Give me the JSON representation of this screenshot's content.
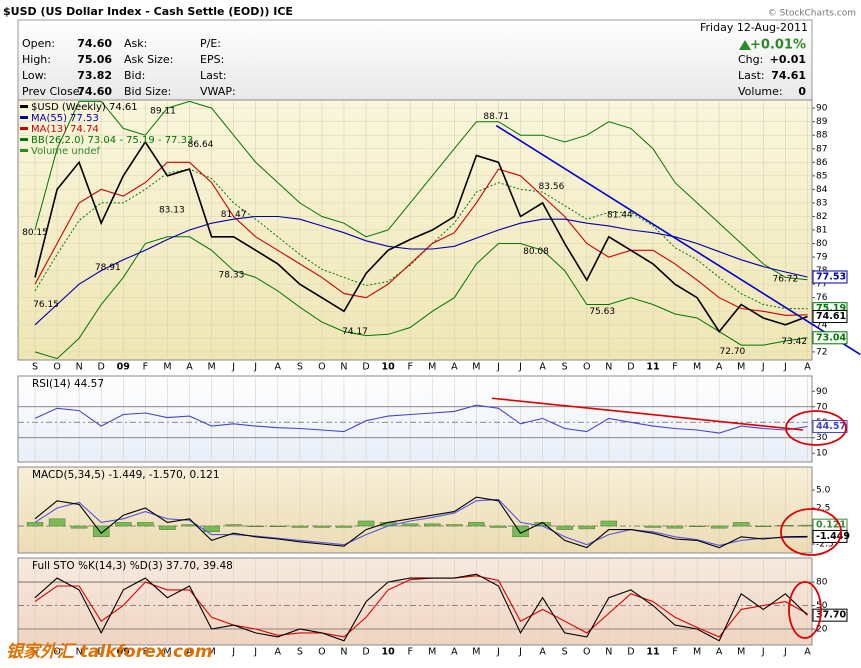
{
  "header": {
    "title": "$USD (US Dollar Index - Cash Settle (EOD)) ICE",
    "credit": "© StockCharts.com",
    "date": "Friday 12-Aug-2011",
    "change_pct": "+0.01%",
    "fields": [
      [
        "Open:",
        "74.60"
      ],
      [
        "High:",
        "75.06"
      ],
      [
        "Low:",
        "73.82"
      ],
      [
        "Prev Close:",
        "74.60"
      ]
    ],
    "col2": [
      "Ask:",
      "Ask Size:",
      "Bid:",
      "Bid Size:"
    ],
    "col3": [
      "P/E:",
      "EPS:",
      "Last:",
      "VWAP:"
    ],
    "right": [
      [
        "Chg:",
        "+0.01"
      ],
      [
        "Last:",
        "74.61"
      ],
      [
        "Volume:",
        "0"
      ]
    ]
  },
  "watermark": "银家外汇 talkforex.com",
  "chart_data": [
    {
      "type": "line",
      "categories": [
        "S",
        "O",
        "N",
        "D",
        "09",
        "F",
        "M",
        "A",
        "M",
        "J",
        "J",
        "A",
        "S",
        "O",
        "N",
        "D",
        "10",
        "F",
        "M",
        "A",
        "M",
        "J",
        "J",
        "A",
        "S",
        "O",
        "N",
        "D",
        "11",
        "F",
        "M",
        "A",
        "M",
        "J",
        "J",
        "A"
      ],
      "ylim": [
        71.4,
        90.6
      ],
      "yticks": [
        72,
        73,
        74,
        75,
        76,
        77,
        78,
        79,
        80,
        81,
        82,
        83,
        84,
        85,
        86,
        87,
        88,
        89,
        90
      ],
      "grid": true,
      "series": [
        {
          "name": "$USD (Weekly) 74.61",
          "color": "#000000",
          "values": [
            77.5,
            84,
            86,
            81.5,
            85,
            87.5,
            85,
            85.5,
            80.5,
            80.5,
            79.5,
            78.5,
            77,
            76,
            75,
            77.8,
            79.5,
            80.3,
            81,
            82,
            86.5,
            86,
            82,
            83,
            80,
            77.3,
            80.5,
            79.5,
            78.5,
            77,
            76,
            73.5,
            75.5,
            74.5,
            74,
            74.61
          ]
        },
        {
          "name": "MA(55) 77.53",
          "color": "#0000aa",
          "values": [
            74,
            75.5,
            77,
            78,
            78.8,
            79.5,
            80.3,
            81,
            81.5,
            81.8,
            82,
            82,
            81.8,
            81.3,
            80.8,
            80.2,
            79.8,
            79.6,
            79.6,
            79.8,
            80.4,
            81,
            81.5,
            81.8,
            81.8,
            81.5,
            81.3,
            81,
            80.8,
            80.5,
            80,
            79.4,
            78.8,
            78.3,
            77.9,
            77.53
          ]
        },
        {
          "name": "MA(13) 74.74",
          "color": "#cc0000",
          "values": [
            77,
            80,
            83,
            84,
            83.5,
            84.5,
            86,
            86,
            84.5,
            82,
            80.5,
            79.5,
            78.5,
            77.5,
            76.3,
            76,
            77,
            78.5,
            80,
            80.8,
            83,
            85.5,
            85,
            83.5,
            82,
            80,
            79,
            79.5,
            79.5,
            78.5,
            77.3,
            76,
            75.2,
            75,
            74.7,
            74.74
          ]
        }
      ],
      "bands": {
        "name": "BB(26,2.0) 73.04 - 75.19 - 77.33",
        "color": "#007700",
        "upper": [
          81,
          87,
          90.5,
          90.5,
          88.5,
          88,
          90,
          90.5,
          90,
          88,
          86,
          84.5,
          83,
          82,
          81.5,
          80.5,
          81,
          83,
          85,
          87,
          89,
          89,
          88,
          88,
          87.5,
          88,
          89,
          88.5,
          87,
          84.5,
          83,
          81.5,
          80,
          78.5,
          77.5,
          77.33
        ],
        "middle": [
          76.5,
          79.2,
          81.7,
          83,
          83,
          84,
          85.2,
          85.5,
          84.8,
          83,
          81.8,
          80.5,
          79.2,
          78.1,
          77.5,
          76.9,
          77.2,
          78.4,
          80,
          81.5,
          83.8,
          84.5,
          84,
          83.8,
          82.8,
          81.8,
          82.3,
          82.3,
          81.3,
          79.7,
          78.8,
          77.5,
          76.3,
          75.5,
          75.2,
          75.19
        ],
        "lower": [
          72,
          71.5,
          73,
          75.5,
          77.5,
          80,
          80.5,
          80.5,
          79.5,
          78,
          77.5,
          76.5,
          75.3,
          74.2,
          73.5,
          73.2,
          73.3,
          73.8,
          75,
          76,
          78.5,
          80,
          80,
          79.5,
          78,
          75.5,
          75.5,
          76,
          75.5,
          74.8,
          74.5,
          73.5,
          72.5,
          72.5,
          72.8,
          73.04
        ]
      },
      "legend_extra": "Volume undef",
      "annotations": [
        {
          "index": 0,
          "value": 80.15,
          "side": "above"
        },
        {
          "index": 0.5,
          "value": 76.15,
          "side": "below"
        },
        {
          "index": 3.3,
          "value": 78.91,
          "side": "below"
        },
        {
          "index": 5.8,
          "value": 89.11,
          "side": "above"
        },
        {
          "index": 7.5,
          "value": 86.64,
          "side": "above"
        },
        {
          "index": 6.2,
          "value": 83.13,
          "side": "below"
        },
        {
          "index": 9,
          "value": 81.47,
          "side": "above"
        },
        {
          "index": 8.9,
          "value": 78.33,
          "side": "below"
        },
        {
          "index": 14.5,
          "value": 74.17,
          "side": "below"
        },
        {
          "index": 20.9,
          "value": 88.71,
          "side": "above"
        },
        {
          "index": 23.4,
          "value": 83.56,
          "side": "above"
        },
        {
          "index": 22.7,
          "value": 80.08,
          "side": "below"
        },
        {
          "index": 26.5,
          "value": 81.44,
          "side": "above"
        },
        {
          "index": 25.7,
          "value": 75.63,
          "side": "below"
        },
        {
          "index": 31.6,
          "value": 72.7,
          "label": "72.70",
          "side": "below"
        },
        {
          "index": 34,
          "value": 76.72,
          "side": "above"
        },
        {
          "index": 34.4,
          "value": 73.42,
          "side": "below"
        }
      ],
      "trendline": {
        "x": [
          20.9,
          37.4
        ],
        "values": [
          88.71,
          71.8
        ],
        "color": "#0000cc"
      },
      "right_labels": [
        {
          "value": 77.53,
          "color": "#0000aa"
        },
        {
          "value": 75.19,
          "color": "#007700"
        },
        {
          "value": 74.61,
          "color": "#000000"
        },
        {
          "value": 73.04,
          "color": "#007700"
        }
      ]
    },
    {
      "type": "line",
      "title": "RSI(14) 44.57",
      "ylim": [
        -1.3,
        109.7
      ],
      "yticks": [
        90,
        70,
        50,
        30,
        10
      ],
      "levels": [
        70,
        50,
        30
      ],
      "series": [
        {
          "color": "#4444cc",
          "values": [
            55,
            68,
            65,
            45,
            60,
            62,
            56,
            58,
            45,
            48,
            45,
            43,
            42,
            40,
            38,
            52,
            58,
            60,
            62,
            64,
            72,
            68,
            48,
            55,
            42,
            38,
            55,
            50,
            45,
            42,
            40,
            36,
            45,
            42,
            40,
            44.57
          ]
        }
      ],
      "trendline": {
        "x": [
          20.7,
          34.8
        ],
        "values": [
          81,
          40
        ],
        "color": "#dd0000"
      },
      "right_labels": [
        {
          "value": 44.57,
          "color": "#4444cc"
        }
      ]
    },
    {
      "type": "line",
      "title": "MACD(5,34,5) -1.449, -1.570, 0.121",
      "ylim": [
        -3.75,
        8.2
      ],
      "yticks": [
        {
          "value": 5,
          "label": "5.0"
        },
        {
          "value": 2.5,
          "label": "2.5"
        },
        {
          "value": -2.5,
          "label": "-2.5"
        }
      ],
      "levels": [
        0
      ],
      "histogram": {
        "color": "#77bb55",
        "values": [
          0.5,
          1,
          -0.3,
          -1.5,
          0.5,
          0.5,
          -0.5,
          0.2,
          -0.8,
          0.2,
          -0.1,
          -0.1,
          -0.2,
          -0.2,
          -0.2,
          0.7,
          0.5,
          0.3,
          0.3,
          0.2,
          0.5,
          -0.2,
          -1.5,
          0.5,
          -0.5,
          -0.4,
          0.7,
          0,
          -0.2,
          -0.3,
          -0.1,
          -0.3,
          0.5,
          -0.1,
          0.1,
          0.121
        ]
      },
      "series": [
        {
          "color": "#000000",
          "values": [
            1,
            3.5,
            3,
            -1,
            1.5,
            2.5,
            0.5,
            1,
            -2,
            -1,
            -1.5,
            -1.8,
            -2.2,
            -2.5,
            -2.8,
            -0.5,
            0.5,
            1,
            1.5,
            2,
            4,
            3.5,
            -1,
            0.5,
            -2,
            -3,
            -0.5,
            -0.5,
            -1,
            -1.8,
            -2,
            -3,
            -1.5,
            -1.8,
            -1.5,
            -1.449
          ]
        },
        {
          "color": "#5555dd",
          "values": [
            0.5,
            2.5,
            3.3,
            0.5,
            1,
            2,
            1,
            0.8,
            -1.2,
            -1.2,
            -1.4,
            -1.7,
            -2,
            -2.3,
            -2.6,
            -1.2,
            0,
            0.7,
            1.2,
            1.8,
            3.5,
            3.7,
            0.5,
            0,
            -1.5,
            -2.6,
            -1.2,
            -0.5,
            -0.8,
            -1.5,
            -1.9,
            -2.7,
            -2,
            -1.7,
            -1.6,
            -1.57
          ]
        }
      ],
      "right_labels": [
        {
          "value": 0.121,
          "color": "#338833"
        },
        {
          "value": -1.449,
          "color": "#000000"
        }
      ]
    },
    {
      "type": "line",
      "title": "Full STO %K(14,3) %D(3) 37.70, 39.48",
      "ylim": [
        -0.4,
        110.7
      ],
      "yticks": [
        80,
        50,
        20
      ],
      "levels": [
        80,
        50,
        20
      ],
      "series": [
        {
          "color": "#000000",
          "values": [
            60,
            85,
            70,
            15,
            70,
            85,
            60,
            75,
            20,
            25,
            15,
            10,
            20,
            15,
            5,
            55,
            80,
            85,
            85,
            85,
            90,
            75,
            15,
            60,
            15,
            10,
            60,
            70,
            50,
            25,
            20,
            5,
            65,
            45,
            65,
            37.7
          ]
        },
        {
          "color": "#dd0000",
          "values": [
            55,
            75,
            75,
            30,
            50,
            80,
            70,
            70,
            35,
            25,
            20,
            12,
            15,
            15,
            10,
            35,
            70,
            83,
            85,
            85,
            88,
            82,
            30,
            45,
            30,
            15,
            40,
            65,
            55,
            35,
            22,
            10,
            45,
            50,
            55,
            39.48
          ]
        }
      ],
      "right_labels": [
        {
          "value": 37.7,
          "label": "37.70",
          "color": "#000000"
        }
      ]
    }
  ]
}
